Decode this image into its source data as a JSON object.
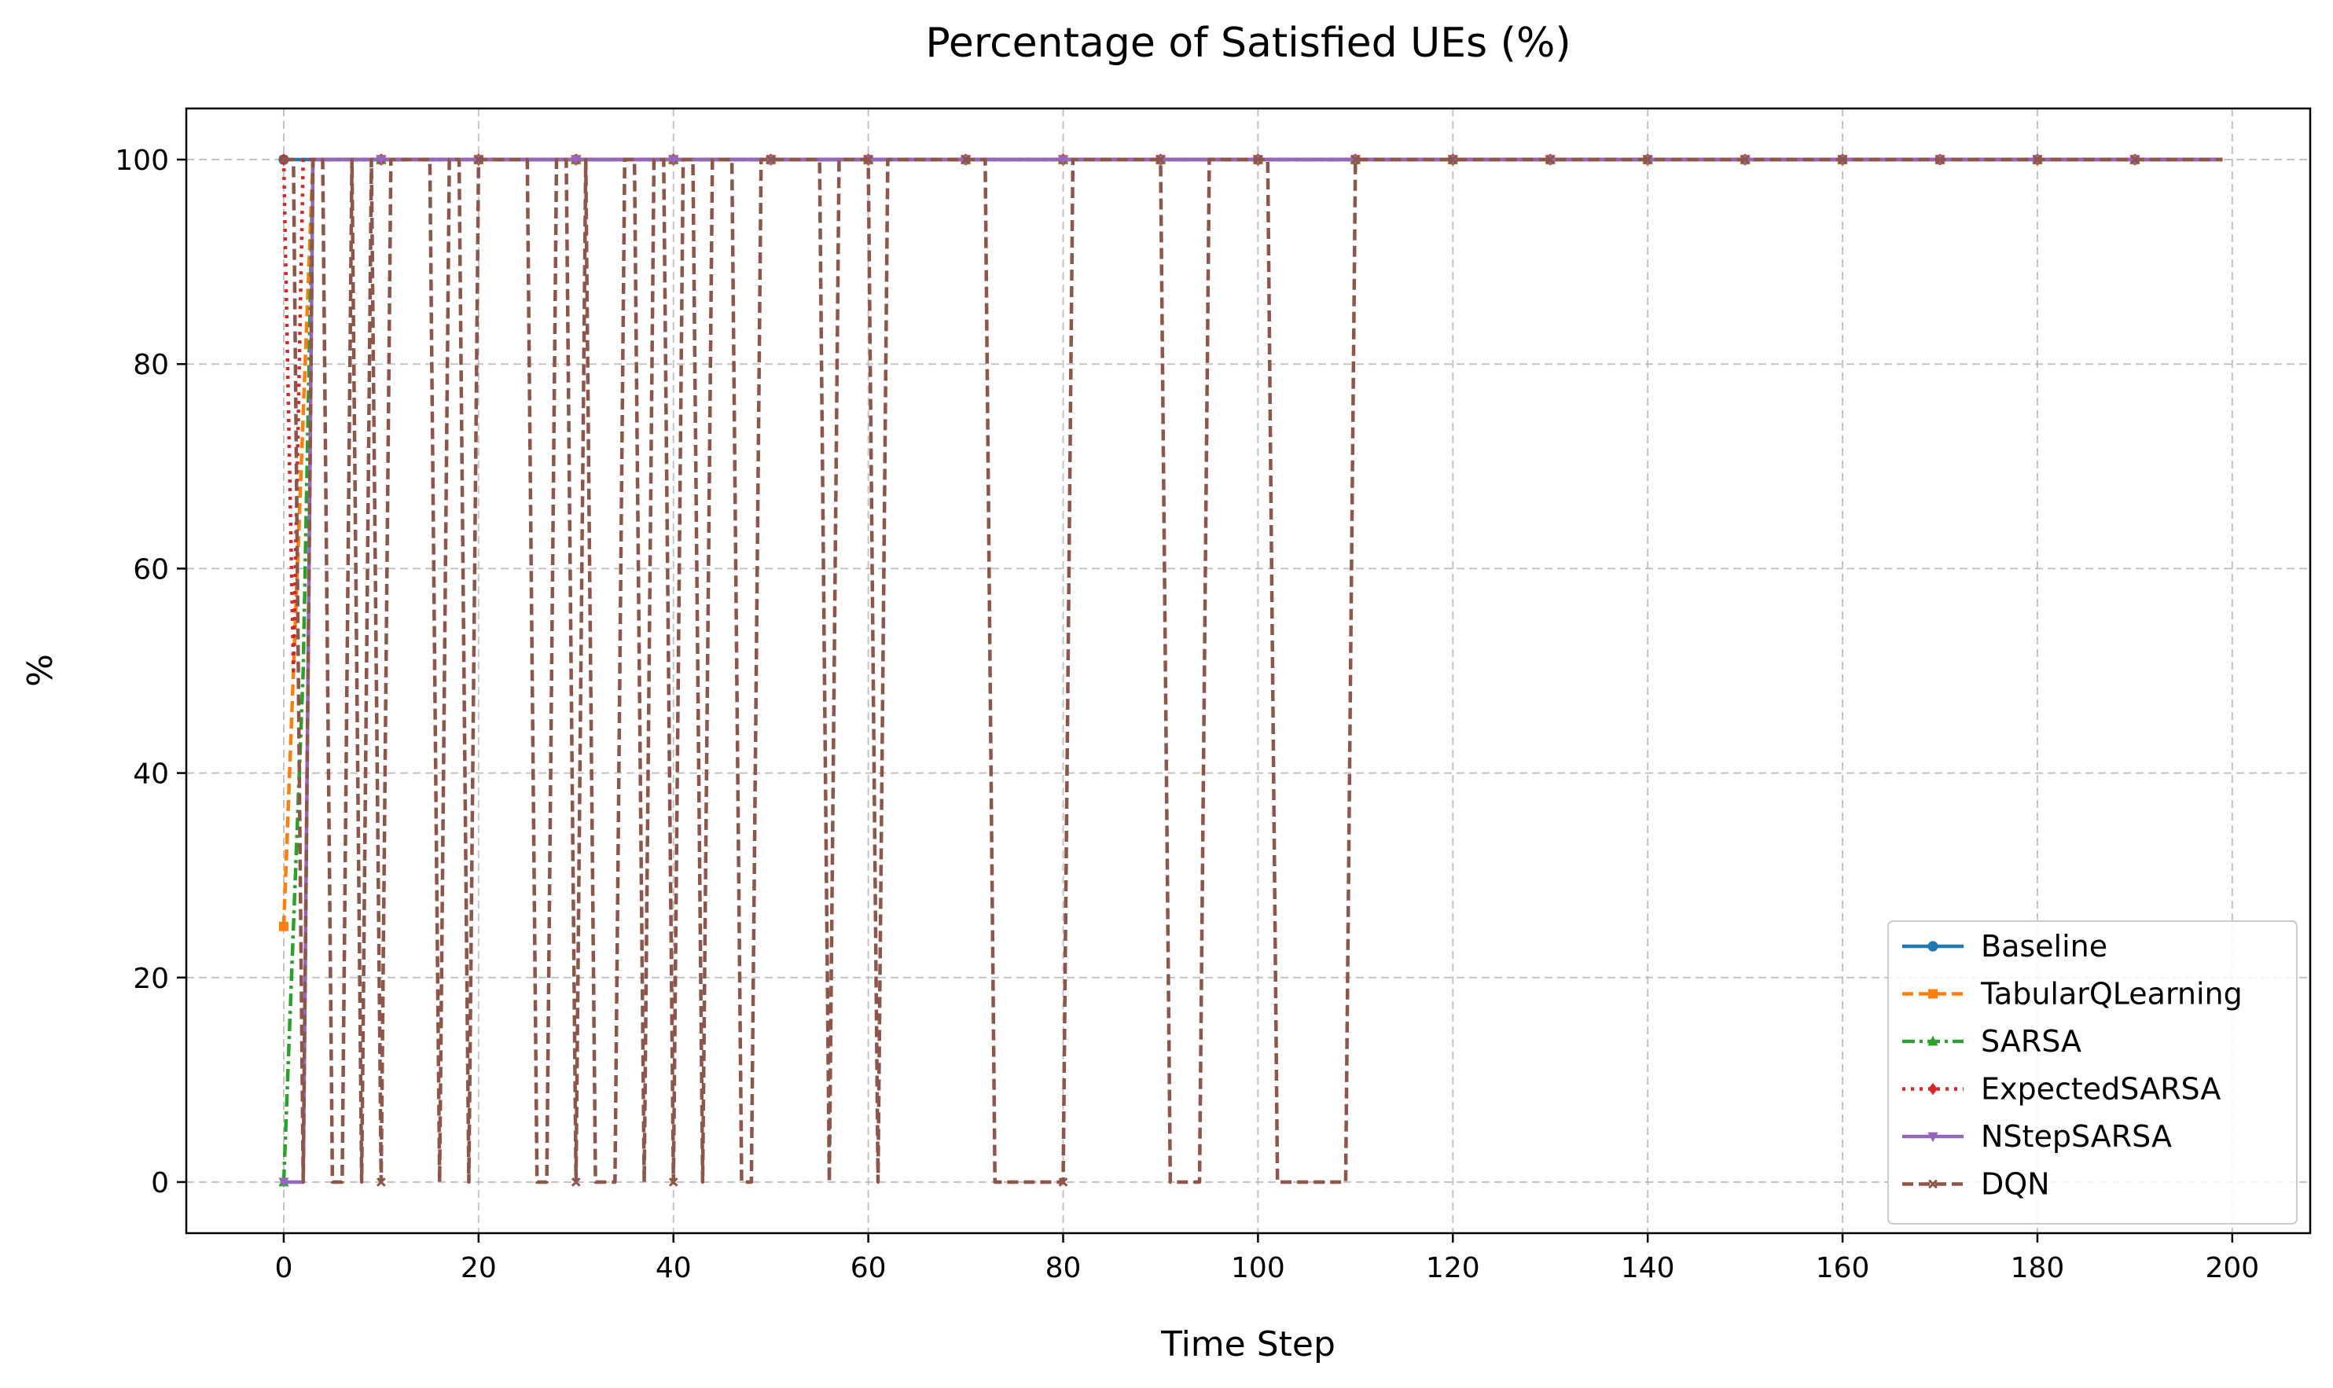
{
  "chart_data": {
    "type": "line",
    "title": "Percentage of Satisfied UEs (%)",
    "xlabel": "Time Step",
    "ylabel": "%",
    "xlim": [
      -10,
      208
    ],
    "ylim": [
      -5,
      105
    ],
    "xticks": [
      0,
      20,
      40,
      60,
      80,
      100,
      120,
      140,
      160,
      180,
      200
    ],
    "yticks": [
      0,
      20,
      40,
      60,
      80,
      100
    ],
    "grid": true,
    "legend_position": "lower-right",
    "x_range": [
      0,
      199
    ],
    "marker_every": 10,
    "series": [
      {
        "name": "Baseline",
        "color": "#1f77b4",
        "line_style": "solid",
        "marker": "circle",
        "points": [
          [
            0,
            100
          ],
          [
            199,
            100
          ]
        ]
      },
      {
        "name": "TabularQLearning",
        "color": "#ff7f0e",
        "line_style": "dashed",
        "marker": "square",
        "points": [
          [
            0,
            25
          ],
          [
            1,
            50
          ],
          [
            2,
            75
          ],
          [
            3,
            100
          ],
          [
            199,
            100
          ]
        ]
      },
      {
        "name": "SARSA",
        "color": "#2ca02c",
        "line_style": "dashdot",
        "marker": "triangle-up",
        "points": [
          [
            0,
            0
          ],
          [
            1,
            25
          ],
          [
            2,
            50
          ],
          [
            3,
            100
          ],
          [
            199,
            100
          ]
        ]
      },
      {
        "name": "ExpectedSARSA",
        "color": "#d62728",
        "line_style": "dotted",
        "marker": "diamond",
        "points": [
          [
            0,
            100
          ],
          [
            1,
            50
          ],
          [
            2,
            100
          ],
          [
            199,
            100
          ]
        ]
      },
      {
        "name": "NStepSARSA",
        "color": "#9467bd",
        "line_style": "solid",
        "marker": "triangle-down",
        "points": [
          [
            0,
            0
          ],
          [
            1,
            0
          ],
          [
            2,
            0
          ],
          [
            3,
            100
          ],
          [
            199,
            100
          ]
        ]
      },
      {
        "name": "DQN",
        "color": "#8c564b",
        "line_style": "dashed",
        "marker": "x",
        "points": [
          [
            0,
            100
          ],
          [
            1,
            100
          ],
          [
            2,
            0
          ],
          [
            3,
            100
          ],
          [
            4,
            100
          ],
          [
            5,
            0
          ],
          [
            6,
            0
          ],
          [
            7,
            100
          ],
          [
            8,
            0
          ],
          [
            9,
            100
          ],
          [
            10,
            0
          ],
          [
            11,
            100
          ],
          [
            12,
            100
          ],
          [
            13,
            100
          ],
          [
            14,
            100
          ],
          [
            15,
            100
          ],
          [
            16,
            0
          ],
          [
            17,
            100
          ],
          [
            18,
            100
          ],
          [
            19,
            0
          ],
          [
            20,
            100
          ],
          [
            21,
            100
          ],
          [
            22,
            100
          ],
          [
            23,
            100
          ],
          [
            24,
            100
          ],
          [
            25,
            100
          ],
          [
            26,
            0
          ],
          [
            27,
            0
          ],
          [
            28,
            100
          ],
          [
            29,
            100
          ],
          [
            30,
            0
          ],
          [
            31,
            100
          ],
          [
            32,
            0
          ],
          [
            33,
            0
          ],
          [
            34,
            0
          ],
          [
            35,
            100
          ],
          [
            36,
            100
          ],
          [
            37,
            0
          ],
          [
            38,
            100
          ],
          [
            39,
            100
          ],
          [
            40,
            0
          ],
          [
            41,
            100
          ],
          [
            42,
            100
          ],
          [
            43,
            0
          ],
          [
            44,
            100
          ],
          [
            45,
            100
          ],
          [
            46,
            100
          ],
          [
            47,
            0
          ],
          [
            48,
            0
          ],
          [
            49,
            100
          ],
          [
            50,
            100
          ],
          [
            51,
            100
          ],
          [
            52,
            100
          ],
          [
            53,
            100
          ],
          [
            54,
            100
          ],
          [
            55,
            100
          ],
          [
            56,
            0
          ],
          [
            57,
            100
          ],
          [
            58,
            100
          ],
          [
            59,
            100
          ],
          [
            60,
            100
          ],
          [
            61,
            0
          ],
          [
            62,
            100
          ],
          [
            63,
            100
          ],
          [
            64,
            100
          ],
          [
            65,
            100
          ],
          [
            66,
            100
          ],
          [
            67,
            100
          ],
          [
            68,
            100
          ],
          [
            69,
            100
          ],
          [
            70,
            100
          ],
          [
            71,
            100
          ],
          [
            72,
            100
          ],
          [
            73,
            0
          ],
          [
            74,
            0
          ],
          [
            75,
            0
          ],
          [
            76,
            0
          ],
          [
            77,
            0
          ],
          [
            78,
            0
          ],
          [
            79,
            0
          ],
          [
            80,
            0
          ],
          [
            81,
            100
          ],
          [
            82,
            100
          ],
          [
            83,
            100
          ],
          [
            84,
            100
          ],
          [
            85,
            100
          ],
          [
            86,
            100
          ],
          [
            87,
            100
          ],
          [
            88,
            100
          ],
          [
            89,
            100
          ],
          [
            90,
            100
          ],
          [
            91,
            0
          ],
          [
            92,
            0
          ],
          [
            93,
            0
          ],
          [
            94,
            0
          ],
          [
            95,
            100
          ],
          [
            96,
            100
          ],
          [
            97,
            100
          ],
          [
            98,
            100
          ],
          [
            99,
            100
          ],
          [
            100,
            100
          ],
          [
            101,
            100
          ],
          [
            102,
            0
          ],
          [
            103,
            0
          ],
          [
            104,
            0
          ],
          [
            105,
            0
          ],
          [
            106,
            0
          ],
          [
            107,
            0
          ],
          [
            108,
            0
          ],
          [
            109,
            0
          ],
          [
            110,
            100
          ],
          [
            199,
            100
          ]
        ]
      }
    ]
  }
}
